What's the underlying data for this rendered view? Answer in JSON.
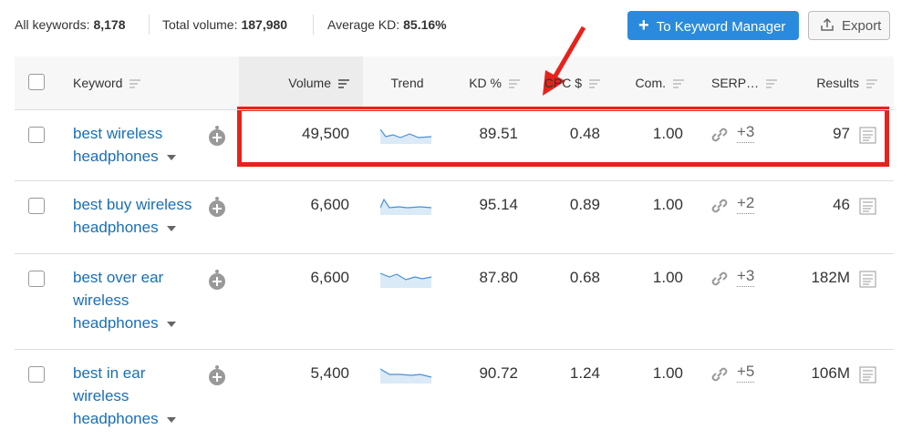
{
  "summary": [
    {
      "label": "All keywords:",
      "value": "8,178"
    },
    {
      "label": "Total volume:",
      "value": "187,980"
    },
    {
      "label": "Average KD:",
      "value": "85.16%"
    }
  ],
  "buttons": {
    "add": "To Keyword Manager",
    "export": "Export"
  },
  "table": {
    "columns": [
      "Keyword",
      "Volume",
      "Trend",
      "KD %",
      "CPC $",
      "Com.",
      "SERP…",
      "Results"
    ],
    "rows": [
      {
        "keyword": "best wireless headphones",
        "volume": "49,500",
        "kd": "89.51",
        "cpc": "0.48",
        "com": "1.00",
        "serp": "+3",
        "results": "97"
      },
      {
        "keyword": "best buy wireless headphones",
        "volume": "6,600",
        "kd": "95.14",
        "cpc": "0.89",
        "com": "1.00",
        "serp": "+2",
        "results": "46"
      },
      {
        "keyword": "best over ear wireless headphones",
        "volume": "6,600",
        "kd": "87.80",
        "cpc": "0.68",
        "com": "1.00",
        "serp": "+3",
        "results": "182M"
      },
      {
        "keyword": "best in ear wireless headphones",
        "volume": "5,400",
        "kd": "90.72",
        "cpc": "1.24",
        "com": "1.00",
        "serp": "+5",
        "results": "106M"
      }
    ]
  }
}
